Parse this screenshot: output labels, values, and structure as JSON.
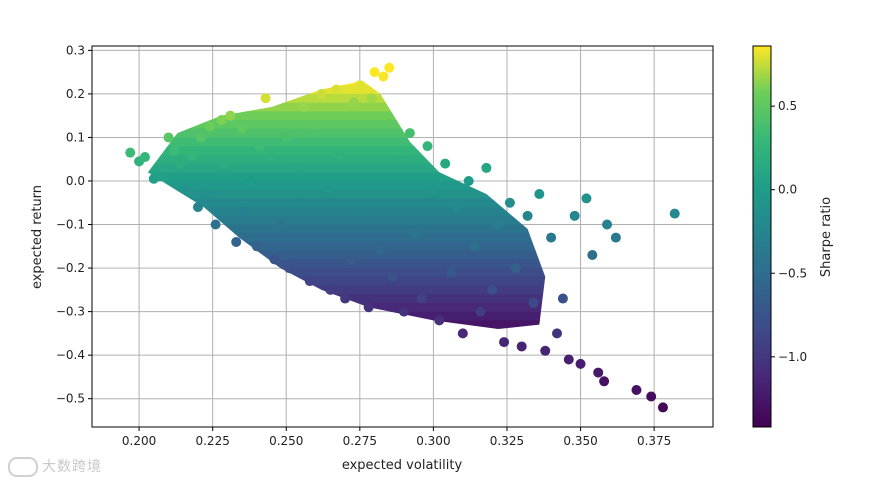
{
  "chart_data": {
    "type": "scatter",
    "xlabel": "expected volatility",
    "ylabel": "expected return",
    "colorbar_label": "Sharpe ratio",
    "colormap": "viridis",
    "xlim": [
      0.184,
      0.395
    ],
    "ylim": [
      -0.565,
      0.31
    ],
    "clim": [
      -1.42,
      0.86
    ],
    "x_ticks": [
      0.2,
      0.225,
      0.25,
      0.275,
      0.3,
      0.325,
      0.35,
      0.375
    ],
    "x_tick_labels": [
      "0.200",
      "0.225",
      "0.250",
      "0.275",
      "0.300",
      "0.325",
      "0.350",
      "0.375"
    ],
    "y_ticks": [
      0.3,
      0.2,
      0.1,
      0.0,
      -0.1,
      -0.2,
      -0.3,
      -0.4,
      -0.5
    ],
    "y_tick_labels": [
      "0.3",
      "0.2",
      "0.1",
      "0.0",
      "−0.1",
      "−0.2",
      "−0.3",
      "−0.4",
      "−0.5"
    ],
    "colorbar_ticks": [
      0.5,
      0.0,
      -0.5,
      -1.0
    ],
    "colorbar_tick_labels": [
      "0.5",
      "0.0",
      "−0.5",
      "−1.0"
    ],
    "grid": true,
    "points": [
      [
        0.197,
        0.065
      ],
      [
        0.2,
        0.045
      ],
      [
        0.202,
        0.055
      ],
      [
        0.205,
        0.005
      ],
      [
        0.207,
        0.01
      ],
      [
        0.21,
        0.1
      ],
      [
        0.212,
        0.07
      ],
      [
        0.214,
        0.04
      ],
      [
        0.216,
        -0.02
      ],
      [
        0.218,
        0.06
      ],
      [
        0.22,
        -0.06
      ],
      [
        0.221,
        0.1
      ],
      [
        0.223,
        -0.03
      ],
      [
        0.224,
        0.125
      ],
      [
        0.226,
        -0.1
      ],
      [
        0.228,
        0.14
      ],
      [
        0.229,
        0.04
      ],
      [
        0.231,
        0.15
      ],
      [
        0.233,
        -0.14
      ],
      [
        0.235,
        0.12
      ],
      [
        0.236,
        -0.07
      ],
      [
        0.238,
        0.0
      ],
      [
        0.24,
        -0.15
      ],
      [
        0.241,
        0.08
      ],
      [
        0.243,
        0.19
      ],
      [
        0.245,
        0.05
      ],
      [
        0.246,
        -0.18
      ],
      [
        0.248,
        -0.1
      ],
      [
        0.25,
        0.1
      ],
      [
        0.251,
        -0.2
      ],
      [
        0.253,
        0.03
      ],
      [
        0.254,
        -0.05
      ],
      [
        0.256,
        0.17
      ],
      [
        0.258,
        -0.23
      ],
      [
        0.259,
        0.13
      ],
      [
        0.261,
        -0.13
      ],
      [
        0.262,
        0.2
      ],
      [
        0.264,
        -0.02
      ],
      [
        0.265,
        -0.25
      ],
      [
        0.267,
        0.21
      ],
      [
        0.268,
        0.06
      ],
      [
        0.27,
        -0.27
      ],
      [
        0.272,
        -0.18
      ],
      [
        0.273,
        0.18
      ],
      [
        0.275,
        0.22
      ],
      [
        0.276,
        -0.07
      ],
      [
        0.278,
        -0.29
      ],
      [
        0.279,
        0.19
      ],
      [
        0.28,
        0.25
      ],
      [
        0.282,
        -0.16
      ],
      [
        0.283,
        0.24
      ],
      [
        0.285,
        0.26
      ],
      [
        0.286,
        -0.22
      ],
      [
        0.288,
        0.05
      ],
      [
        0.29,
        -0.3
      ],
      [
        0.292,
        0.11
      ],
      [
        0.294,
        -0.12
      ],
      [
        0.296,
        -0.27
      ],
      [
        0.298,
        0.08
      ],
      [
        0.3,
        -0.02
      ],
      [
        0.302,
        -0.32
      ],
      [
        0.304,
        0.04
      ],
      [
        0.306,
        -0.21
      ],
      [
        0.308,
        -0.06
      ],
      [
        0.31,
        -0.35
      ],
      [
        0.312,
        0.0
      ],
      [
        0.314,
        -0.15
      ],
      [
        0.316,
        -0.3
      ],
      [
        0.318,
        0.03
      ],
      [
        0.32,
        -0.25
      ],
      [
        0.322,
        -0.1
      ],
      [
        0.324,
        -0.37
      ],
      [
        0.326,
        -0.05
      ],
      [
        0.328,
        -0.2
      ],
      [
        0.33,
        -0.38
      ],
      [
        0.332,
        -0.08
      ],
      [
        0.334,
        -0.28
      ],
      [
        0.336,
        -0.03
      ],
      [
        0.338,
        -0.39
      ],
      [
        0.34,
        -0.13
      ],
      [
        0.342,
        -0.35
      ],
      [
        0.344,
        -0.27
      ],
      [
        0.346,
        -0.41
      ],
      [
        0.348,
        -0.08
      ],
      [
        0.35,
        -0.42
      ],
      [
        0.352,
        -0.04
      ],
      [
        0.354,
        -0.17
      ],
      [
        0.356,
        -0.44
      ],
      [
        0.358,
        -0.46
      ],
      [
        0.359,
        -0.1
      ],
      [
        0.362,
        -0.13
      ],
      [
        0.369,
        -0.48
      ],
      [
        0.374,
        -0.495
      ],
      [
        0.378,
        -0.52
      ],
      [
        0.382,
        -0.075
      ]
    ]
  },
  "watermark": {
    "text": "大数跨境"
  }
}
